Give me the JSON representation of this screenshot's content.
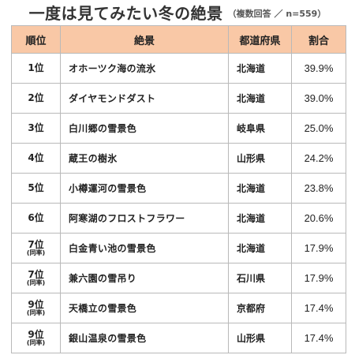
{
  "title": "一度は見てみたい冬の絶景",
  "title_note": "（複数回答 ／ n=559）",
  "table": {
    "headers": [
      "順位",
      "絶景",
      "都道府県",
      "割合"
    ],
    "rows": [
      {
        "rank": "1位",
        "rank_note": "",
        "name": "オホーツク海の流氷",
        "prefecture": "北海道",
        "percent": "39.9%"
      },
      {
        "rank": "2位",
        "rank_note": "",
        "name": "ダイヤモンドダスト",
        "prefecture": "北海道",
        "percent": "39.0%"
      },
      {
        "rank": "3位",
        "rank_note": "",
        "name": "白川郷の雪景色",
        "prefecture": "岐阜県",
        "percent": "25.0%"
      },
      {
        "rank": "4位",
        "rank_note": "",
        "name": "蔵王の樹氷",
        "prefecture": "山形県",
        "percent": "24.2%"
      },
      {
        "rank": "5位",
        "rank_note": "",
        "name": "小樽運河の雪景色",
        "prefecture": "北海道",
        "percent": "23.8%"
      },
      {
        "rank": "6位",
        "rank_note": "",
        "name": "阿寒湖のフロストフラワー",
        "prefecture": "北海道",
        "percent": "20.6%"
      },
      {
        "rank": "7位",
        "rank_note": "(同率)",
        "name": "白金青い池の雪景色",
        "prefecture": "北海道",
        "percent": "17.9%"
      },
      {
        "rank": "7位",
        "rank_note": "(同率)",
        "name": "兼六園の雪吊り",
        "prefecture": "石川県",
        "percent": "17.9%"
      },
      {
        "rank": "9位",
        "rank_note": "(同率)",
        "name": "天橋立の雪景色",
        "prefecture": "京都府",
        "percent": "17.4%"
      },
      {
        "rank": "9位",
        "rank_note": "(同率)",
        "name": "銀山温泉の雪景色",
        "prefecture": "山形県",
        "percent": "17.4%"
      }
    ]
  },
  "colors": {
    "header_bg": "#f9c8a6",
    "border": "#b9b9b9",
    "text": "#222222"
  }
}
